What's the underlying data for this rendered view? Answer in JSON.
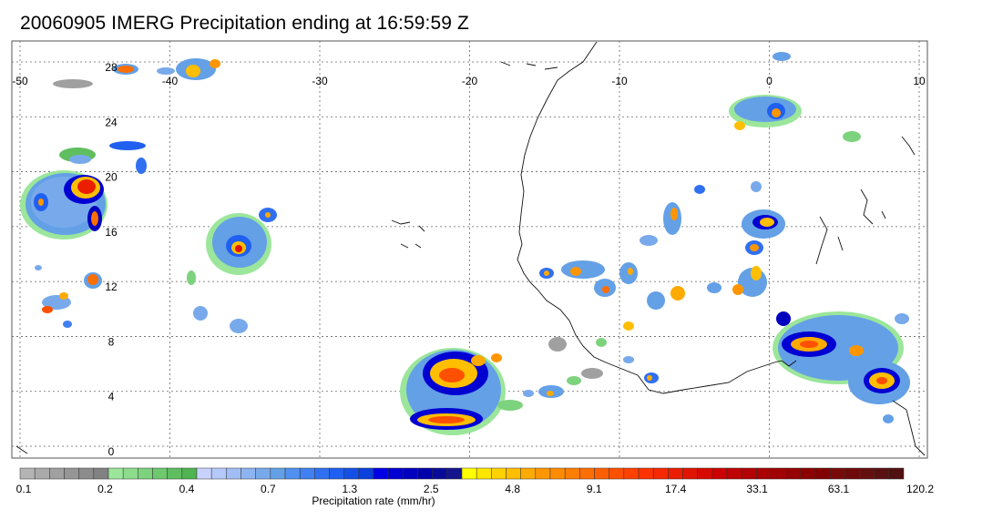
{
  "title": "20060905 IMERG Precipitation ending at 16:59:59 Z",
  "lon_ticks": [
    "-50",
    "-40",
    "-30",
    "-20",
    "-10",
    "0",
    "10"
  ],
  "lat_ticks": [
    "28",
    "24",
    "20",
    "16",
    "12",
    "8",
    "4",
    "0"
  ],
  "colorbar": {
    "labels": [
      "0.1",
      "0.2",
      "0.4",
      "0.7",
      "1.3",
      "2.5",
      "4.8",
      "9.1",
      "17.4",
      "33.1",
      "63.1",
      "120.2"
    ],
    "units": "Precipitation rate (mm/hr)",
    "colors": [
      "#b4b4b4",
      "#aaaaaa",
      "#a0a0a0",
      "#969696",
      "#8c8c8c",
      "#828282",
      "#9be69b",
      "#8cdc8c",
      "#7dd27d",
      "#6ec86e",
      "#5fbe5f",
      "#50b450",
      "#c8d2ff",
      "#b4c8fa",
      "#a0bef5",
      "#8cb4f0",
      "#78aaeb",
      "#64a0e6",
      "#5090f0",
      "#4080f0",
      "#3070f0",
      "#2060f0",
      "#1450e6",
      "#0a40dc",
      "#0000e6",
      "#0000d2",
      "#0000be",
      "#0000aa",
      "#0a0a9a",
      "#14148c",
      "#ffff00",
      "#ffe600",
      "#ffd200",
      "#ffbe00",
      "#ffaa00",
      "#ff9600",
      "#ff8c00",
      "#ff7d00",
      "#ff6e00",
      "#ff5f00",
      "#ff5000",
      "#ff4100",
      "#ff3200",
      "#f52800",
      "#eb1e00",
      "#e11400",
      "#d70a00",
      "#cd0000",
      "#be0000",
      "#b40000",
      "#aa0000",
      "#a00000",
      "#960000",
      "#8c0000",
      "#820000",
      "#780a0a",
      "#6e0a0a",
      "#641010",
      "#5a1010",
      "#501010"
    ]
  }
}
